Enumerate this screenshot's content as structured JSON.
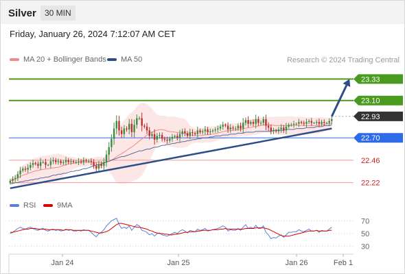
{
  "header": {
    "instrument": "Silver",
    "interval": "30 MIN",
    "datetime": "Friday, January 26, 2024 7:12:07 AM CET"
  },
  "legend": {
    "ma20_label": "MA 20 + Bollinger Bands",
    "ma50_label": "MA 50",
    "ma20_color": "#f08a8a",
    "ma50_color": "#2c4d87",
    "credit": "Research © 2024 Trading Central"
  },
  "rsi_legend": {
    "rsi_label": "RSI",
    "ma9_label": "9MA",
    "rsi_color": "#5b7fd4",
    "ma9_color": "#d40000"
  },
  "colors": {
    "green_level": "#4a9a1f",
    "blue_level": "#2d6be8",
    "red_level": "#f29a9a",
    "current_price": "#333333",
    "candle_up": "#3e8a3e",
    "candle_down": "#b93030",
    "trend": "#2c4d87"
  },
  "chart_data": {
    "type": "candlestick",
    "x_ticks": [
      "Jan 24",
      "Jan 25",
      "Jan 26",
      "Feb 1"
    ],
    "price_ylim": [
      22.1,
      23.45
    ],
    "levels": [
      {
        "value": 23.33,
        "label": "23.33",
        "kind": "resistance"
      },
      {
        "value": 23.1,
        "label": "23.10",
        "kind": "resistance"
      },
      {
        "value": 22.93,
        "label": "22.93",
        "kind": "current"
      },
      {
        "value": 22.7,
        "label": "22.70",
        "kind": "pivot"
      },
      {
        "value": 22.46,
        "label": "22.46",
        "kind": "support"
      },
      {
        "value": 22.22,
        "label": "22.22",
        "kind": "support"
      }
    ],
    "closes": [
      22.24,
      22.26,
      22.27,
      22.31,
      22.35,
      22.37,
      22.36,
      22.38,
      22.41,
      22.43,
      22.42,
      22.4,
      22.44,
      22.44,
      22.41,
      22.41,
      22.45,
      22.46,
      22.44,
      22.45,
      22.43,
      22.44,
      22.46,
      22.44,
      22.45,
      22.44,
      22.44,
      22.45,
      22.44,
      22.46,
      22.45,
      22.45,
      22.44,
      22.4,
      22.37,
      22.42,
      22.4,
      22.44,
      22.52,
      22.6,
      22.69,
      22.8,
      22.88,
      22.78,
      22.74,
      22.8,
      22.79,
      22.85,
      22.76,
      22.84,
      22.91,
      22.91,
      22.83,
      22.82,
      22.78,
      22.72,
      22.74,
      22.68,
      22.72,
      22.73,
      22.69,
      22.68,
      22.67,
      22.69,
      22.71,
      22.72,
      22.7,
      22.74,
      22.77,
      22.75,
      22.72,
      22.76,
      22.75,
      22.74,
      22.78,
      22.76,
      22.77,
      22.79,
      22.76,
      22.77,
      22.78,
      22.79,
      22.8,
      22.82,
      22.84,
      22.83,
      22.79,
      22.81,
      22.8,
      22.8,
      22.83,
      22.8,
      22.86,
      22.89,
      22.85,
      22.87,
      22.85,
      22.9,
      22.86,
      22.86,
      22.9,
      22.83,
      22.81,
      22.77,
      22.78,
      22.77,
      22.79,
      22.81,
      22.78,
      22.82,
      22.84,
      22.84,
      22.85,
      22.85,
      22.87,
      22.86,
      22.85,
      22.87,
      22.88,
      22.86,
      22.86,
      22.87,
      22.85,
      22.87,
      22.86,
      22.86,
      22.88,
      22.9
    ],
    "ma50": [
      22.21,
      22.21,
      22.22,
      22.22,
      22.23,
      22.23,
      22.24,
      22.24,
      22.25,
      22.25,
      22.26,
      22.26,
      22.27,
      22.27,
      22.28,
      22.28,
      22.29,
      22.3,
      22.3,
      22.31,
      22.31,
      22.32,
      22.32,
      22.33,
      22.34,
      22.34,
      22.35,
      22.35,
      22.36,
      22.37,
      22.37,
      22.38,
      22.39,
      22.4,
      22.41,
      22.41,
      22.42,
      22.43,
      22.44,
      22.45,
      22.46,
      22.47,
      22.48,
      22.49,
      22.5,
      22.5,
      22.51,
      22.52,
      22.53,
      22.54,
      22.55,
      22.56,
      22.56,
      22.57,
      22.58,
      22.58,
      22.59,
      22.6,
      22.6,
      22.61,
      22.62,
      22.62,
      22.63,
      22.63,
      22.64,
      22.64,
      22.65,
      22.65,
      22.66,
      22.66,
      22.67,
      22.67,
      22.68,
      22.68,
      22.69,
      22.69,
      22.7,
      22.7,
      22.7,
      22.71,
      22.71,
      22.72,
      22.72,
      22.72,
      22.73,
      22.73,
      22.73,
      22.74,
      22.74,
      22.74,
      22.75,
      22.75,
      22.75,
      22.76,
      22.76,
      22.76,
      22.76,
      22.77,
      22.77,
      22.77,
      22.77,
      22.77,
      22.77,
      22.77,
      22.78,
      22.78,
      22.78,
      22.78,
      22.78,
      22.79,
      22.79,
      22.79,
      22.79,
      22.8,
      22.8,
      22.8,
      22.8,
      22.81,
      22.81,
      22.81,
      22.81,
      22.82,
      22.82,
      22.82,
      22.83,
      22.83,
      22.83,
      22.84
    ],
    "trendline": [
      [
        0,
        22.16
      ],
      [
        127,
        22.8
      ]
    ],
    "arrow": {
      "from": [
        127,
        22.93
      ],
      "to": [
        134,
        23.33
      ]
    },
    "rsi_ylim": [
      20,
      80
    ],
    "rsi_ticks": [
      70,
      50,
      30
    ],
    "rsi": [
      50,
      52,
      55,
      58,
      60,
      58,
      57,
      59,
      60,
      58,
      56,
      55,
      57,
      58,
      55,
      54,
      56,
      57,
      55,
      56,
      54,
      55,
      57,
      55,
      56,
      54,
      54,
      55,
      54,
      56,
      55,
      55,
      52,
      48,
      45,
      50,
      52,
      56,
      62,
      66,
      70,
      72,
      74,
      64,
      58,
      60,
      58,
      62,
      55,
      60,
      64,
      62,
      55,
      54,
      52,
      48,
      50,
      46,
      50,
      51,
      48,
      47,
      46,
      48,
      50,
      52,
      50,
      54,
      56,
      54,
      51,
      55,
      54,
      53,
      57,
      55,
      56,
      58,
      54,
      55,
      56,
      57,
      58,
      60,
      62,
      60,
      54,
      56,
      55,
      55,
      58,
      55,
      60,
      64,
      58,
      60,
      58,
      63,
      58,
      58,
      62,
      52,
      48,
      42,
      44,
      43,
      46,
      48,
      44,
      48,
      52,
      52,
      53,
      53,
      56,
      54,
      53,
      55,
      57,
      54,
      54,
      55,
      52,
      55,
      54,
      54,
      57,
      60
    ],
    "rsi_ma9": [
      52,
      52,
      53,
      54,
      55,
      56,
      57,
      57,
      58,
      58,
      58,
      57,
      57,
      57,
      57,
      56,
      56,
      56,
      56,
      56,
      56,
      55,
      56,
      56,
      56,
      55,
      55,
      55,
      55,
      55,
      55,
      55,
      54,
      53,
      52,
      51,
      51,
      52,
      53,
      55,
      58,
      61,
      64,
      66,
      66,
      65,
      64,
      63,
      62,
      61,
      60,
      60,
      59,
      58,
      57,
      55,
      54,
      52,
      51,
      50,
      50,
      49,
      49,
      48,
      48,
      49,
      49,
      50,
      51,
      52,
      52,
      53,
      53,
      53,
      54,
      54,
      55,
      55,
      55,
      55,
      56,
      56,
      56,
      57,
      57,
      58,
      57,
      57,
      57,
      57,
      57,
      57,
      57,
      58,
      58,
      58,
      58,
      59,
      59,
      59,
      59,
      58,
      57,
      55,
      53,
      51,
      49,
      47,
      46,
      46,
      46,
      47,
      48,
      49,
      50,
      51,
      52,
      53,
      54,
      54,
      54,
      55,
      54,
      54,
      54,
      54,
      55,
      55
    ]
  }
}
